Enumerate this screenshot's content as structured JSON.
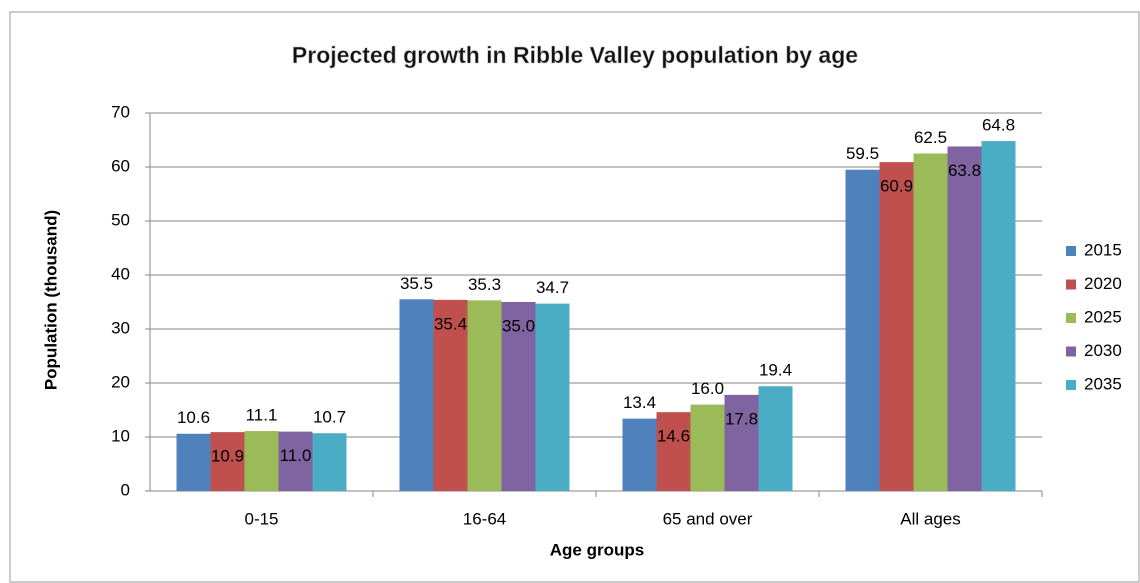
{
  "chart_data": {
    "type": "bar",
    "title": "Projected growth in Ribble Valley population by age",
    "x_label": "Age groups",
    "y_label": "Population (thousand)",
    "categories": [
      "0-15",
      "16-64",
      "65 and over",
      "All ages"
    ],
    "series": [
      {
        "name": "2015",
        "color": "#4f81bd",
        "values": [
          10.6,
          35.5,
          13.4,
          59.5
        ],
        "value_labels": [
          "10.6",
          "35.5",
          "13.4",
          "59.5"
        ]
      },
      {
        "name": "2020",
        "color": "#c0504d",
        "values": [
          10.9,
          35.4,
          14.6,
          60.9
        ],
        "value_labels": [
          "10.9",
          "35.4",
          "14.6",
          "60.9"
        ]
      },
      {
        "name": "2025",
        "color": "#9bbb59",
        "values": [
          11.1,
          35.3,
          16,
          62.5
        ],
        "value_labels": [
          "11.1",
          "35.3",
          "16.0",
          "62.5"
        ]
      },
      {
        "name": "2030",
        "color": "#8064a2",
        "values": [
          11,
          35,
          17.8,
          63.8
        ],
        "value_labels": [
          "11.0",
          "35.0",
          "17.8",
          "63.8"
        ]
      },
      {
        "name": "2035",
        "color": "#4bacc6",
        "values": [
          10.7,
          34.7,
          19.4,
          64.8
        ],
        "value_labels": [
          "10.7",
          "34.7",
          "19.4",
          "64.8"
        ]
      }
    ],
    "ylim": [
      0,
      70
    ],
    "yticks": [
      0,
      10,
      20,
      30,
      40,
      50,
      60,
      70
    ],
    "grid": true,
    "legend": "right"
  }
}
